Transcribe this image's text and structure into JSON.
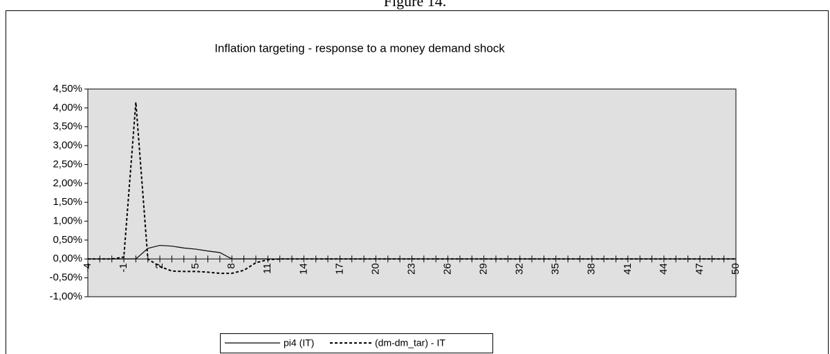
{
  "heading": "Figure 14.",
  "chart_data": {
    "type": "line",
    "title": "Inflation targeting - response to a money demand shock",
    "categories": [
      "-4",
      null,
      null,
      "-1",
      null,
      null,
      "2",
      null,
      null,
      "5",
      null,
      null,
      "8",
      null,
      null,
      "11",
      null,
      null,
      "14",
      null,
      null,
      "17",
      null,
      null,
      "20",
      null,
      null,
      "23",
      null,
      null,
      "26",
      null,
      null,
      "29",
      null,
      null,
      "32",
      null,
      null,
      "35",
      null,
      null,
      "38",
      null,
      null,
      "41",
      null,
      null,
      "44",
      null,
      null,
      "47",
      null,
      null,
      "50"
    ],
    "series": [
      {
        "name": "pi4 (IT)",
        "color": "#000000",
        "dash": "solid",
        "values": [
          0,
          0,
          0,
          0,
          0,
          0.28,
          0.36,
          0.34,
          0.29,
          0.26,
          0.21,
          0.17,
          0,
          0,
          0,
          0,
          0,
          0,
          0,
          0,
          0,
          0,
          0,
          0,
          0,
          0,
          0,
          0,
          0,
          0,
          0,
          0,
          0,
          0,
          0,
          0,
          0,
          0,
          0,
          0,
          0,
          0,
          0,
          0,
          0,
          0,
          0,
          0,
          0,
          0,
          0,
          0,
          0,
          0,
          0
        ]
      },
      {
        "name": "(dm-dm_tar) - IT",
        "color": "#000000",
        "dash": "dashed",
        "values": [
          0,
          0,
          0,
          0.05,
          4.15,
          0,
          -0.2,
          -0.32,
          -0.33,
          -0.33,
          -0.35,
          -0.38,
          -0.38,
          -0.3,
          -0.1,
          -0.02,
          0,
          0,
          0,
          0,
          0,
          0,
          0,
          0,
          0,
          0,
          0,
          0,
          0,
          0,
          0,
          0,
          0,
          0,
          0,
          0,
          0,
          0,
          0,
          0,
          0,
          0,
          0,
          0,
          0,
          0,
          0,
          0,
          0,
          0,
          0,
          0,
          0,
          0,
          0
        ]
      }
    ],
    "ylim": [
      -1,
      4.5
    ],
    "yticks": [
      {
        "value": -1,
        "label": "-1,00%"
      },
      {
        "value": -0.5,
        "label": "-0,50%"
      },
      {
        "value": 0,
        "label": "0,00%"
      },
      {
        "value": 0.5,
        "label": "0,50%"
      },
      {
        "value": 1,
        "label": "1,00%"
      },
      {
        "value": 1.5,
        "label": "1,50%"
      },
      {
        "value": 2,
        "label": "2,00%"
      },
      {
        "value": 2.5,
        "label": "2,50%"
      },
      {
        "value": 3,
        "label": "3,00%"
      },
      {
        "value": 3.5,
        "label": "3,50%"
      },
      {
        "value": 4,
        "label": "4,00%"
      },
      {
        "value": 4.5,
        "label": "4,50%"
      }
    ],
    "grid": false,
    "plot_background": "#e0e0e0",
    "legend": "bottom"
  }
}
